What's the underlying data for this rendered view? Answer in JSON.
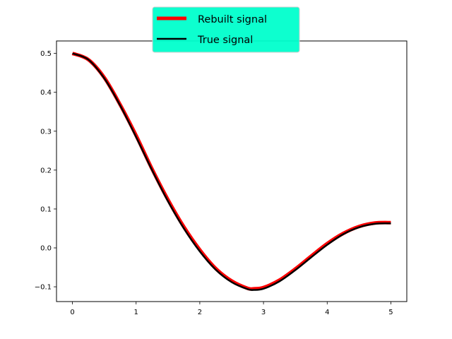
{
  "chart_data": {
    "type": "line",
    "title": "",
    "xlabel": "",
    "ylabel": "",
    "xlim": [
      -0.25,
      5.25
    ],
    "ylim": [
      -0.138,
      0.532
    ],
    "grid": false,
    "legend_placement": "upper-center-outside",
    "legend_bg": "#00ffcc",
    "xticks": [
      {
        "value": 0,
        "label": "0"
      },
      {
        "value": 1,
        "label": "1"
      },
      {
        "value": 2,
        "label": "2"
      },
      {
        "value": 3,
        "label": "3"
      },
      {
        "value": 4,
        "label": "4"
      },
      {
        "value": 5,
        "label": "5"
      }
    ],
    "yticks": [
      {
        "value": -0.1,
        "label": "−0.1"
      },
      {
        "value": 0.0,
        "label": "0.0"
      },
      {
        "value": 0.1,
        "label": "0.1"
      },
      {
        "value": 0.2,
        "label": "0.2"
      },
      {
        "value": 0.3,
        "label": "0.3"
      },
      {
        "value": 0.4,
        "label": "0.4"
      },
      {
        "value": 0.5,
        "label": "0.5"
      }
    ],
    "x": [
      0,
      0.25,
      0.5,
      0.75,
      1.0,
      1.25,
      1.5,
      1.75,
      2.0,
      2.25,
      2.5,
      2.75,
      2.85,
      3.0,
      3.25,
      3.5,
      3.75,
      4.0,
      4.25,
      4.5,
      4.75,
      5.0
    ],
    "series": [
      {
        "name": "Rebuilt signal",
        "color": "#ff0000",
        "values": [
          0.5,
          0.484,
          0.438,
          0.368,
          0.289,
          0.203,
          0.124,
          0.054,
          -0.005,
          -0.053,
          -0.085,
          -0.104,
          -0.105,
          -0.102,
          -0.083,
          -0.054,
          -0.021,
          0.011,
          0.037,
          0.055,
          0.064,
          0.065
        ]
      },
      {
        "name": "True signal",
        "color": "#000000",
        "values": [
          0.5,
          0.484,
          0.436,
          0.366,
          0.285,
          0.2,
          0.12,
          0.05,
          -0.009,
          -0.056,
          -0.088,
          -0.106,
          -0.108,
          -0.105,
          -0.086,
          -0.057,
          -0.024,
          0.008,
          0.035,
          0.053,
          0.062,
          0.063
        ]
      }
    ]
  }
}
